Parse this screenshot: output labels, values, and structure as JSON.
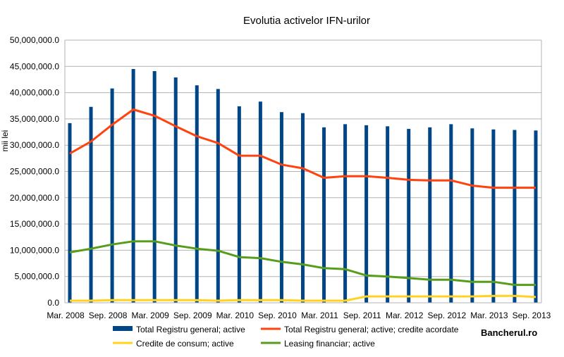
{
  "chart_data": {
    "type": "bar",
    "title": "Evolutia activelor IFN-urilor",
    "ylabel": "mii lei",
    "xlabel": "",
    "ylim": [
      0,
      50000000
    ],
    "yticks": [
      "0.0",
      "5,000,000.0",
      "10,000,000.0",
      "15,000,000.0",
      "20,000,000.0",
      "25,000,000.0",
      "30,000,000.0",
      "35,000,000.0",
      "40,000,000.0",
      "45,000,000.0",
      "50,000,000.0"
    ],
    "ytick_values": [
      0,
      5000000,
      10000000,
      15000000,
      20000000,
      25000000,
      30000000,
      35000000,
      40000000,
      45000000,
      50000000
    ],
    "x_tick_labels": [
      "Mar. 2008",
      "Sep. 2008",
      "Mar. 2009",
      "Sep. 2009",
      "Mar. 2010",
      "Sep. 2010",
      "Mar. 2011",
      "Sep. 2011",
      "Mar. 2012",
      "Sep. 2012",
      "Mar. 2013",
      "Sep. 2013"
    ],
    "grid": true,
    "legend_position": "bottom",
    "series": [
      {
        "name": "Total Registru general; active",
        "kind": "bar",
        "color": "#004586",
        "values": [
          34200000,
          37300000,
          40800000,
          44500000,
          44100000,
          42900000,
          41400000,
          40700000,
          37400000,
          38300000,
          36300000,
          36100000,
          33400000,
          34000000,
          33800000,
          33600000,
          33100000,
          33400000,
          34000000,
          33200000,
          33000000,
          32900000,
          32800000
        ]
      },
      {
        "name": "Total Registru general; active; credite acordate",
        "kind": "line",
        "color": "#ff420e",
        "values": [
          28400000,
          30700000,
          33900000,
          36800000,
          35600000,
          33600000,
          31700000,
          30400000,
          28000000,
          28000000,
          26300000,
          25600000,
          23800000,
          24100000,
          24100000,
          23800000,
          23400000,
          23300000,
          23300000,
          22300000,
          21900000,
          21900000,
          21900000
        ]
      },
      {
        "name": "Credite de consum; active",
        "kind": "line",
        "color": "#ffd320",
        "values": [
          400000,
          400000,
          500000,
          500000,
          500000,
          500000,
          500000,
          400000,
          500000,
          500000,
          500000,
          400000,
          400000,
          400000,
          1200000,
          1200000,
          1200000,
          1200000,
          1200000,
          1200000,
          1300000,
          1300000,
          1100000
        ]
      },
      {
        "name": "Leasing financiar; active",
        "kind": "line",
        "color": "#579d1c",
        "values": [
          9600000,
          10300000,
          11100000,
          11700000,
          11700000,
          10900000,
          10300000,
          9900000,
          8700000,
          8500000,
          7800000,
          7300000,
          6600000,
          6400000,
          5200000,
          5000000,
          4700000,
          4400000,
          4400000,
          4000000,
          4000000,
          3400000,
          3400000
        ]
      }
    ]
  },
  "watermark": "Bancherul.ro",
  "colors": {
    "background": "#ffffff",
    "grid": "#b3b3b3",
    "axis": "#b3b3b3"
  }
}
